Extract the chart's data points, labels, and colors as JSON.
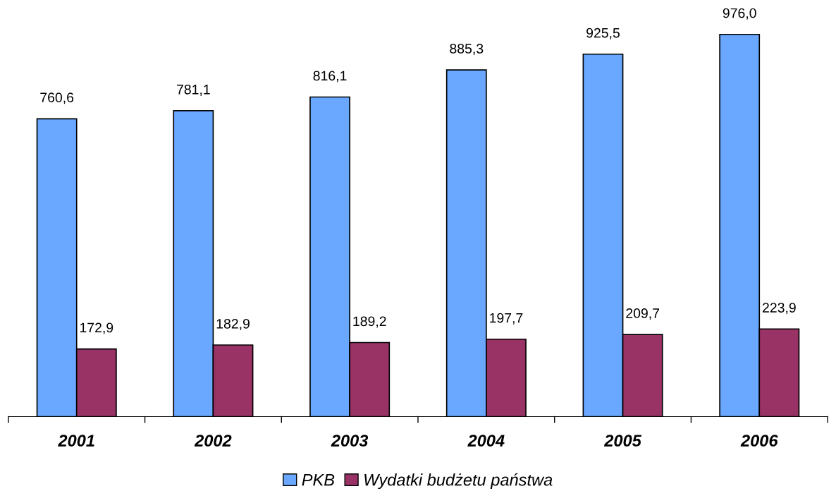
{
  "chart_data": {
    "type": "bar",
    "categories": [
      "2001",
      "2002",
      "2003",
      "2004",
      "2005",
      "2006"
    ],
    "series": [
      {
        "name": "PKB",
        "color": "#6aa8ff",
        "values": [
          760.6,
          781.1,
          816.1,
          885.3,
          925.5,
          976.0
        ],
        "value_labels": [
          "760,6",
          "781,1",
          "816,1",
          "885,3",
          "925,5",
          "976,0"
        ]
      },
      {
        "name": "Wydatki budżetu państwa",
        "color": "#993366",
        "values": [
          172.9,
          182.9,
          189.2,
          197.7,
          209.7,
          223.9
        ],
        "value_labels": [
          "172,9",
          "182,9",
          "189,2",
          "197,7",
          "209,7",
          "223,9"
        ]
      }
    ],
    "legend": "bottom",
    "grid": false,
    "tick_labels": "x"
  }
}
